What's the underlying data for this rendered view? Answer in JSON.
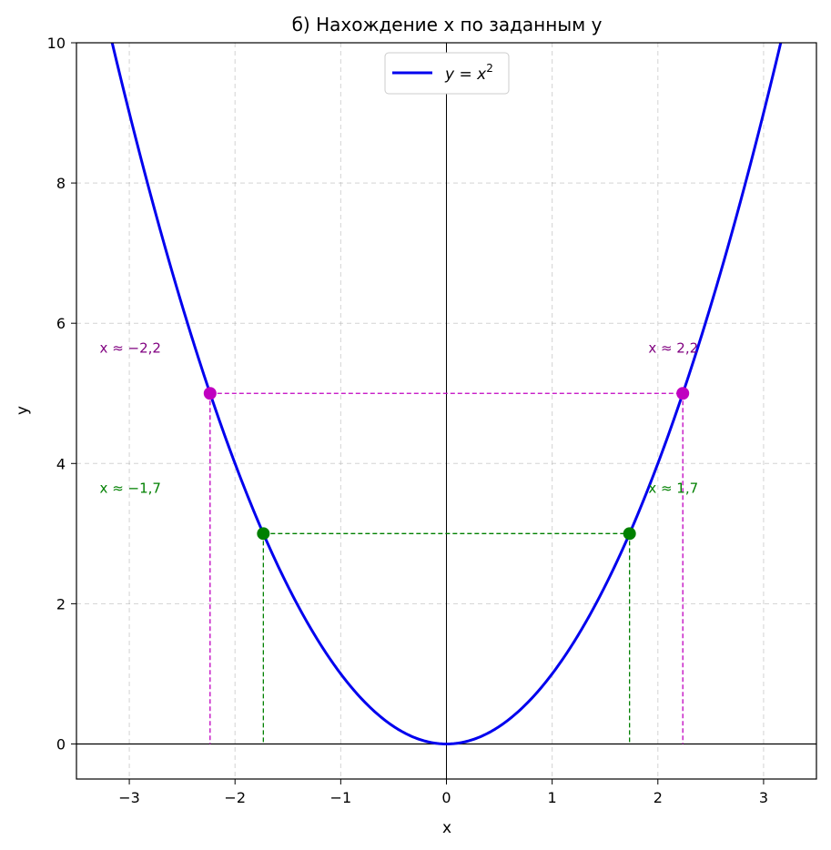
{
  "chart_data": {
    "type": "line",
    "title": "б) Нахождение x по заданным y",
    "xlabel": "x",
    "ylabel": "y",
    "xlim": [
      -3.5,
      3.5
    ],
    "ylim": [
      -0.5,
      10
    ],
    "x_ticks": [
      -3,
      -2,
      -1,
      0,
      1,
      2,
      3
    ],
    "x_tick_labels": [
      "−3",
      "−2",
      "−1",
      "0",
      "1",
      "2",
      "3"
    ],
    "y_ticks": [
      0,
      2,
      4,
      6,
      8,
      10
    ],
    "y_tick_labels": [
      "0",
      "2",
      "4",
      "6",
      "8",
      "10"
    ],
    "grid": true,
    "legend_position": "top-center",
    "series": [
      {
        "name": "y = x²",
        "legend_label": {
          "y": "y",
          "eq": " = ",
          "x": "x",
          "exp": "2"
        },
        "function": "x^2",
        "x_range": [
          -3.5,
          3.5
        ],
        "color": "#0000ee"
      }
    ],
    "marked_points": [
      {
        "y": 5,
        "x_left": -2.236,
        "x_right": 2.236,
        "color": "#c000c0",
        "label_color": "#800080",
        "label_left": "x ≈ −2,2",
        "label_right": "x ≈ 2,2"
      },
      {
        "y": 3,
        "x_left": -1.732,
        "x_right": 1.732,
        "color": "#008000",
        "label_color": "#008000",
        "label_left": "x ≈ −1,7",
        "label_right": "x ≈ 1,7"
      }
    ]
  }
}
